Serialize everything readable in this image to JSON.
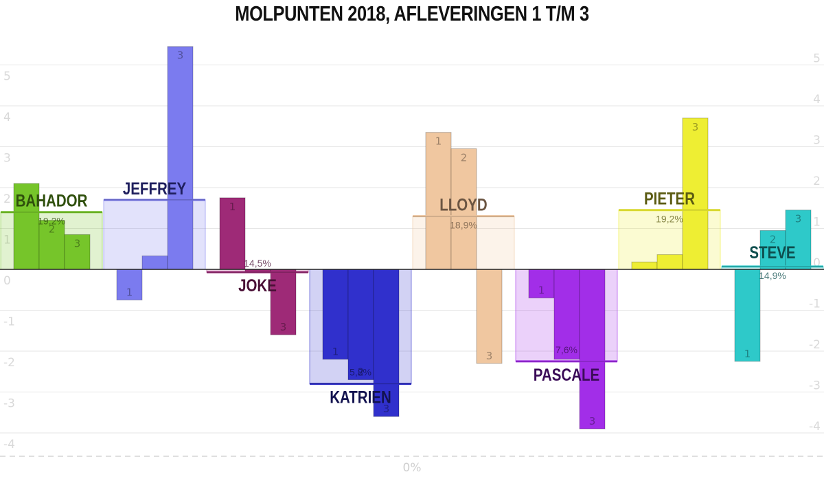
{
  "chart_data": {
    "type": "bar",
    "title": "MOLPUNTEN 2018, AFLEVERINGEN 1 T/M 3",
    "ylim": [
      -4.5,
      5.3
    ],
    "left_ticks": [
      -4,
      -3,
      -2,
      -1,
      0,
      1,
      2,
      3,
      4,
      5
    ],
    "right_ticks": [
      -4,
      -3,
      -2,
      -1,
      0,
      1,
      2,
      3,
      4,
      5
    ],
    "bottom_label": "0%",
    "episode_labels": [
      "1",
      "2",
      "3"
    ],
    "grid": true,
    "candidates": [
      {
        "name": "BAHADOR",
        "color": "#76c52a",
        "text_color": "#2f4f0c",
        "values": [
          2.1,
          1.2,
          0.85
        ],
        "total": 1.4,
        "percent": "19,2%",
        "show_num": [
          false,
          true,
          true
        ]
      },
      {
        "name": "JEFFREY",
        "color": "#7b7bef",
        "text_color": "#1f1f5e",
        "values": [
          -0.75,
          0.33,
          5.45
        ],
        "total": 1.7,
        "percent": "",
        "show_num": [
          true,
          false,
          true
        ]
      },
      {
        "name": "JOKE",
        "color": "#9e2a77",
        "text_color": "#4a0f36",
        "values": [
          1.75,
          -0.05,
          -1.6
        ],
        "total": -0.07,
        "percent": "14,5%",
        "show_num": [
          true,
          false,
          true
        ]
      },
      {
        "name": "KATRIEN",
        "color": "#3030cc",
        "text_color": "#12124f",
        "values": [
          -2.2,
          -2.7,
          -3.6
        ],
        "total": -2.8,
        "percent": "5,8%",
        "show_num": [
          true,
          true,
          true
        ]
      },
      {
        "name": "LLOYD",
        "color": "#f0c7a0",
        "text_color": "#6b5542",
        "values": [
          3.35,
          2.95,
          -2.3
        ],
        "total": 1.3,
        "percent": "18,9%",
        "show_num": [
          true,
          true,
          true
        ]
      },
      {
        "name": "PASCALE",
        "color": "#a22ee8",
        "text_color": "#3b0c58",
        "values": [
          -0.7,
          -2.2,
          -3.9
        ],
        "total": -2.25,
        "percent": "7,6%",
        "show_num": [
          true,
          false,
          true
        ]
      },
      {
        "name": "PIETER",
        "color": "#eeee33",
        "text_color": "#5b5b12",
        "values": [
          0.18,
          0.36,
          3.7
        ],
        "total": 1.45,
        "percent": "19,2%",
        "show_num": [
          false,
          false,
          true
        ]
      },
      {
        "name": "STEVE",
        "color": "#2ec9c9",
        "text_color": "#0e4d4d",
        "values": [
          -2.25,
          0.95,
          1.45
        ],
        "total": 0.07,
        "percent": "14,9%",
        "show_num": [
          true,
          true,
          true
        ]
      }
    ]
  }
}
